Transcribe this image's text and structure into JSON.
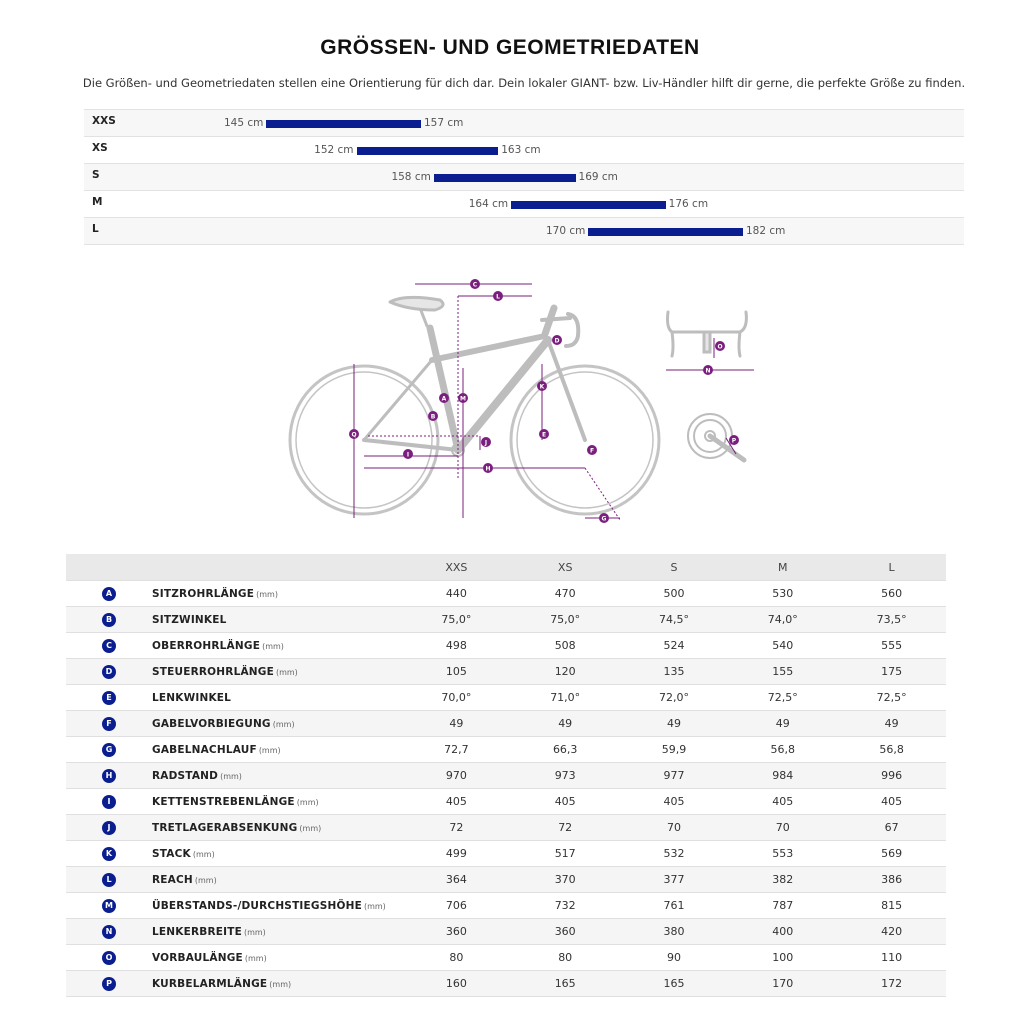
{
  "header": {
    "title": "GRÖSSEN- UND GEOMETRIEDATEN",
    "subtitle": "Die Größen- und Geometriedaten stellen eine Orientierung für dich dar. Dein lokaler GIANT- bzw. Liv-Händler hilft dir gerne, die perfekte Größe zu finden."
  },
  "size_chart": {
    "scale_min_cm": 140,
    "scale_max_cm": 190,
    "rows": [
      {
        "size": "XXS",
        "min": 145,
        "max": 157,
        "min_label": "145 cm",
        "max_label": "157 cm"
      },
      {
        "size": "XS",
        "min": 152,
        "max": 163,
        "min_label": "152 cm",
        "max_label": "163 cm"
      },
      {
        "size": "S",
        "min": 158,
        "max": 169,
        "min_label": "158 cm",
        "max_label": "169 cm"
      },
      {
        "size": "M",
        "min": 164,
        "max": 176,
        "min_label": "164 cm",
        "max_label": "176 cm"
      },
      {
        "size": "L",
        "min": 170,
        "max": 182,
        "min_label": "170 cm",
        "max_label": "182 cm"
      }
    ],
    "bar_color": "#0b1e8f"
  },
  "diagram": {
    "markers": [
      "A",
      "B",
      "C",
      "D",
      "E",
      "F",
      "G",
      "H",
      "I",
      "J",
      "K",
      "L",
      "M",
      "N",
      "O",
      "P",
      "Q"
    ],
    "line_color": "#7b1f7f",
    "frame_color": "#bfbfbf"
  },
  "geometry_table": {
    "columns": [
      "XXS",
      "XS",
      "S",
      "M",
      "L"
    ],
    "rows": [
      {
        "badge": "A",
        "name": "SITZROHRLÄNGE",
        "unit": "(mm)",
        "values": [
          "440",
          "470",
          "500",
          "530",
          "560"
        ]
      },
      {
        "badge": "B",
        "name": "SITZWINKEL",
        "unit": "",
        "values": [
          "75,0°",
          "75,0°",
          "74,5°",
          "74,0°",
          "73,5°"
        ]
      },
      {
        "badge": "C",
        "name": "OBERROHRLÄNGE",
        "unit": "(mm)",
        "values": [
          "498",
          "508",
          "524",
          "540",
          "555"
        ]
      },
      {
        "badge": "D",
        "name": "STEUERROHRLÄNGE",
        "unit": "(mm)",
        "values": [
          "105",
          "120",
          "135",
          "155",
          "175"
        ]
      },
      {
        "badge": "E",
        "name": "LENKWINKEL",
        "unit": "",
        "values": [
          "70,0°",
          "71,0°",
          "72,0°",
          "72,5°",
          "72,5°"
        ]
      },
      {
        "badge": "F",
        "name": "GABELVORBIEGUNG",
        "unit": "(mm)",
        "values": [
          "49",
          "49",
          "49",
          "49",
          "49"
        ]
      },
      {
        "badge": "G",
        "name": "GABELNACHLAUF",
        "unit": "(mm)",
        "values": [
          "72,7",
          "66,3",
          "59,9",
          "56,8",
          "56,8"
        ]
      },
      {
        "badge": "H",
        "name": "RADSTAND",
        "unit": "(mm)",
        "values": [
          "970",
          "973",
          "977",
          "984",
          "996"
        ]
      },
      {
        "badge": "I",
        "name": "KETTENSTREBENLÄNGE",
        "unit": "(mm)",
        "values": [
          "405",
          "405",
          "405",
          "405",
          "405"
        ]
      },
      {
        "badge": "J",
        "name": "TRETLAGERABSENKUNG",
        "unit": "(mm)",
        "values": [
          "72",
          "72",
          "70",
          "70",
          "67"
        ]
      },
      {
        "badge": "K",
        "name": "STACK",
        "unit": "(mm)",
        "values": [
          "499",
          "517",
          "532",
          "553",
          "569"
        ]
      },
      {
        "badge": "L",
        "name": "REACH",
        "unit": "(mm)",
        "values": [
          "364",
          "370",
          "377",
          "382",
          "386"
        ]
      },
      {
        "badge": "M",
        "name": "ÜBERSTANDS-/DURCHSTIEGSHÖHE",
        "unit": "(mm)",
        "values": [
          "706",
          "732",
          "761",
          "787",
          "815"
        ]
      },
      {
        "badge": "N",
        "name": "LENKERBREITE",
        "unit": "(mm)",
        "values": [
          "360",
          "360",
          "380",
          "400",
          "420"
        ]
      },
      {
        "badge": "O",
        "name": "VORBAULÄNGE",
        "unit": "(mm)",
        "values": [
          "80",
          "80",
          "90",
          "100",
          "110"
        ]
      },
      {
        "badge": "P",
        "name": "KURBELARMLÄNGE",
        "unit": "(mm)",
        "values": [
          "160",
          "165",
          "165",
          "170",
          "172"
        ]
      }
    ]
  }
}
